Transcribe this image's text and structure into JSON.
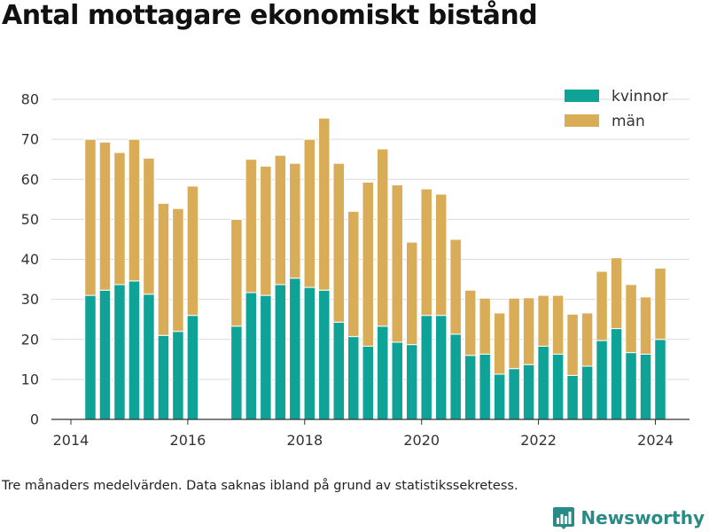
{
  "title": "Antal mottagare ekonomiskt bistånd",
  "footnote": "Tre månaders medelvärden. Data saknas ibland på grund av statistikssekretess.",
  "brand": {
    "name": "Newsworthy",
    "logo_icon": "bar-chart-logo-icon",
    "color": "#2a8a86"
  },
  "colors": {
    "kvinnor": "#0fa397",
    "man": "#d9ad57",
    "grid": "#d9d9d9",
    "axis": "#333333"
  },
  "chart_data": {
    "type": "bar",
    "stacked": true,
    "title": "Antal mottagare ekonomiskt bistånd",
    "xlabel": "",
    "ylabel": "",
    "x_ticks": [
      "2014",
      "2016",
      "2018",
      "2020",
      "2022",
      "2024"
    ],
    "y_ticks": [
      "0",
      "10",
      "20",
      "30",
      "40",
      "50",
      "60",
      "70",
      "80"
    ],
    "xlim": [
      "2013-09-01",
      "2024-08-01"
    ],
    "ylim": [
      0,
      80
    ],
    "grid": "horizontal",
    "legend": {
      "position": "top-right"
    },
    "x": [
      "2014-05",
      "2014-08",
      "2014-11",
      "2015-02",
      "2015-05",
      "2015-08",
      "2015-11",
      "2016-02",
      "2016-11",
      "2017-02",
      "2017-05",
      "2017-08",
      "2017-11",
      "2018-02",
      "2018-05",
      "2018-08",
      "2018-11",
      "2019-02",
      "2019-05",
      "2019-08",
      "2019-11",
      "2020-02",
      "2020-05",
      "2020-08",
      "2020-11",
      "2021-02",
      "2021-05",
      "2021-08",
      "2021-11",
      "2022-02",
      "2022-05",
      "2022-08",
      "2022-11",
      "2023-02",
      "2023-05",
      "2023-08",
      "2023-11",
      "2024-02"
    ],
    "series": [
      {
        "name": "kvinnor",
        "color": "#0fa397",
        "values": [
          31,
          32.3,
          33.7,
          34.6,
          31.3,
          21,
          22,
          26,
          23.3,
          31.7,
          31,
          33.7,
          35.3,
          33,
          32.3,
          24.3,
          20.7,
          18.3,
          23.3,
          19.3,
          18.7,
          26,
          26,
          21.3,
          16,
          16.3,
          11.3,
          12.7,
          13.7,
          18.3,
          16.3,
          11,
          13.3,
          19.7,
          22.7,
          16.7,
          16.3,
          20
        ]
      },
      {
        "name": "män",
        "color": "#d9ad57",
        "values": [
          39,
          37,
          33,
          35.4,
          34,
          33,
          30.7,
          32.3,
          26.7,
          33.3,
          32.3,
          32.3,
          28.7,
          37,
          43,
          39.7,
          31.3,
          41,
          44.3,
          39.3,
          25.6,
          31.6,
          30.3,
          23.7,
          16.3,
          14,
          15.3,
          17.6,
          16.7,
          12.7,
          14.7,
          15.3,
          13.3,
          17.3,
          17.7,
          17,
          14.3,
          17.8
        ]
      }
    ]
  }
}
